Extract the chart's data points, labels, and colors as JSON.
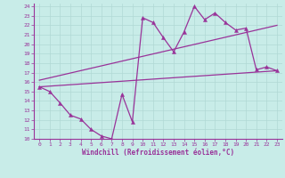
{
  "xlabel": "Windchill (Refroidissement éolien,°C)",
  "background_color": "#c8ece8",
  "grid_color": "#b0d8d4",
  "line_color": "#993399",
  "xlim": [
    -0.5,
    23.5
  ],
  "ylim": [
    10,
    24.3
  ],
  "xticks": [
    0,
    1,
    2,
    3,
    4,
    5,
    6,
    7,
    8,
    9,
    10,
    11,
    12,
    13,
    14,
    15,
    16,
    17,
    18,
    19,
    20,
    21,
    22,
    23
  ],
  "yticks": [
    10,
    11,
    12,
    13,
    14,
    15,
    16,
    17,
    18,
    19,
    20,
    21,
    22,
    23,
    24
  ],
  "series1_x": [
    0,
    1,
    2,
    3,
    4,
    5,
    6,
    7,
    8,
    9,
    10,
    11,
    12,
    13,
    14,
    15,
    16,
    17,
    18,
    19,
    20,
    21,
    22,
    23
  ],
  "series1_y": [
    15.5,
    15.0,
    13.8,
    12.5,
    12.1,
    11.0,
    10.3,
    10.0,
    14.7,
    11.8,
    22.8,
    22.3,
    20.7,
    19.2,
    21.3,
    24.0,
    22.6,
    23.3,
    22.3,
    21.5,
    21.7,
    17.3,
    17.6,
    17.2
  ],
  "series2_x": [
    0,
    23
  ],
  "series2_y": [
    15.5,
    17.2
  ],
  "series3_x": [
    0,
    23
  ],
  "series3_y": [
    16.2,
    22.0
  ],
  "marker": "^",
  "markersize": 3,
  "linewidth": 0.9,
  "tick_fontsize": 4.5,
  "xlabel_fontsize": 5.5
}
